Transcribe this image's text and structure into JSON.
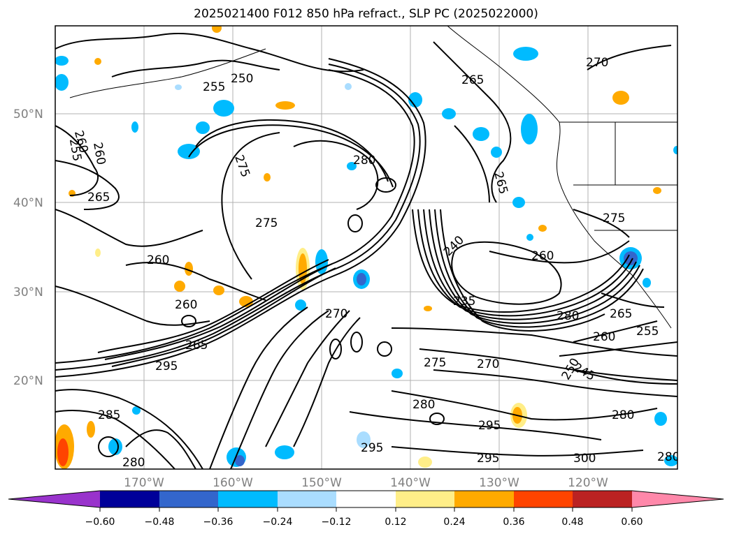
{
  "title": "2025021400 F012 850 hPa refract., SLP PC (2025022000)",
  "lat_labels": [
    "50°N",
    "40°N",
    "30°N",
    "20°N"
  ],
  "lon_labels": [
    "170°W",
    "160°W",
    "150°W",
    "140°W",
    "130°W",
    "120°W"
  ],
  "colorbar": {
    "ticks": [
      "−0.60",
      "−0.48",
      "−0.36",
      "−0.24",
      "−0.12",
      "0.12",
      "0.24",
      "0.36",
      "0.48",
      "0.60"
    ],
    "colors": [
      "#9933cc",
      "#000099",
      "#3366cc",
      "#00bbff",
      "#aaddff",
      "#ffffff",
      "#ffee88",
      "#ffaa00",
      "#ff4400",
      "#bb2222",
      "#ff88aa"
    ]
  },
  "contour_labels": [
    {
      "text": "250"
    },
    {
      "text": "255"
    },
    {
      "text": "260"
    },
    {
      "text": "265"
    },
    {
      "text": "270"
    },
    {
      "text": "275"
    },
    {
      "text": "280"
    },
    {
      "text": "275"
    },
    {
      "text": "260"
    },
    {
      "text": "260"
    },
    {
      "text": "255"
    },
    {
      "text": "260"
    },
    {
      "text": "265"
    },
    {
      "text": "265"
    },
    {
      "text": "275"
    },
    {
      "text": "240"
    },
    {
      "text": "260"
    },
    {
      "text": "235"
    },
    {
      "text": "280"
    },
    {
      "text": "260"
    },
    {
      "text": "270"
    },
    {
      "text": "275"
    },
    {
      "text": "295"
    },
    {
      "text": "280"
    },
    {
      "text": "295"
    },
    {
      "text": "295"
    },
    {
      "text": "295"
    },
    {
      "text": "285"
    },
    {
      "text": "280"
    },
    {
      "text": "300"
    },
    {
      "text": "280"
    },
    {
      "text": "280"
    },
    {
      "text": "245"
    },
    {
      "text": "250"
    },
    {
      "text": "255"
    },
    {
      "text": "265"
    },
    {
      "text": "270"
    },
    {
      "text": "265"
    }
  ]
}
